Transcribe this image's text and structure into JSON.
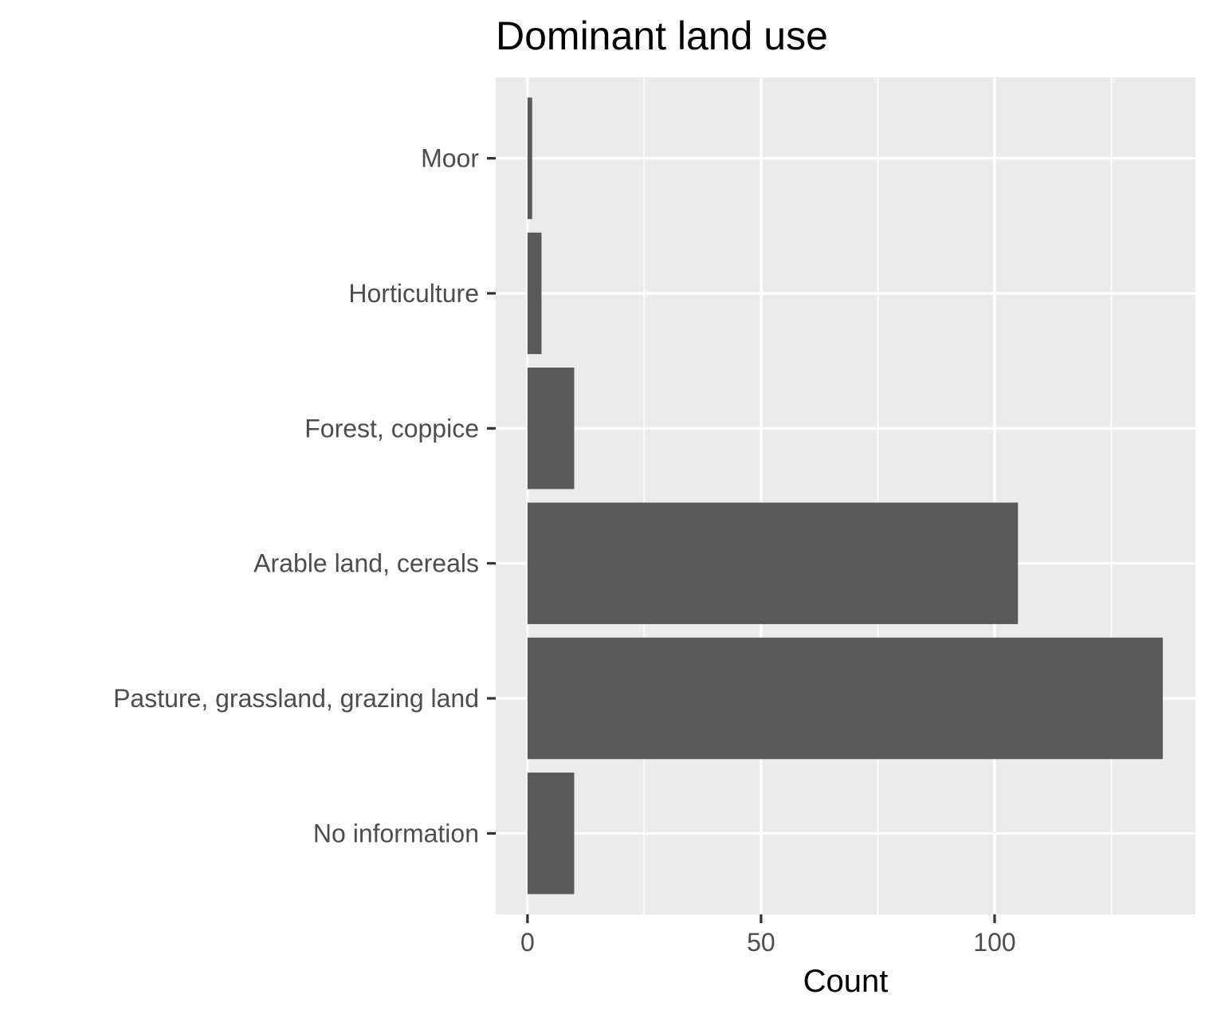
{
  "chart_data": {
    "type": "bar",
    "orientation": "horizontal",
    "title": "Dominant land use",
    "xlabel": "Count",
    "ylabel": "",
    "categories": [
      "Moor",
      "Horticulture",
      "Forest, coppice",
      "Arable land, cereals",
      "Pasture, grassland, grazing land",
      "No information"
    ],
    "values": [
      1,
      3,
      10,
      105,
      136,
      10
    ],
    "xlim": [
      -6.8,
      143
    ],
    "x_ticks": [
      0,
      50,
      100
    ],
    "x_minor_ticks": [
      25,
      75,
      125
    ],
    "grid": true,
    "legend": "none",
    "colors": {
      "bar": "#595959",
      "panel": "#EBEBEB",
      "grid": "#FFFFFF",
      "tick_label": "#4D4D4D",
      "tick_mark": "#333333"
    }
  }
}
